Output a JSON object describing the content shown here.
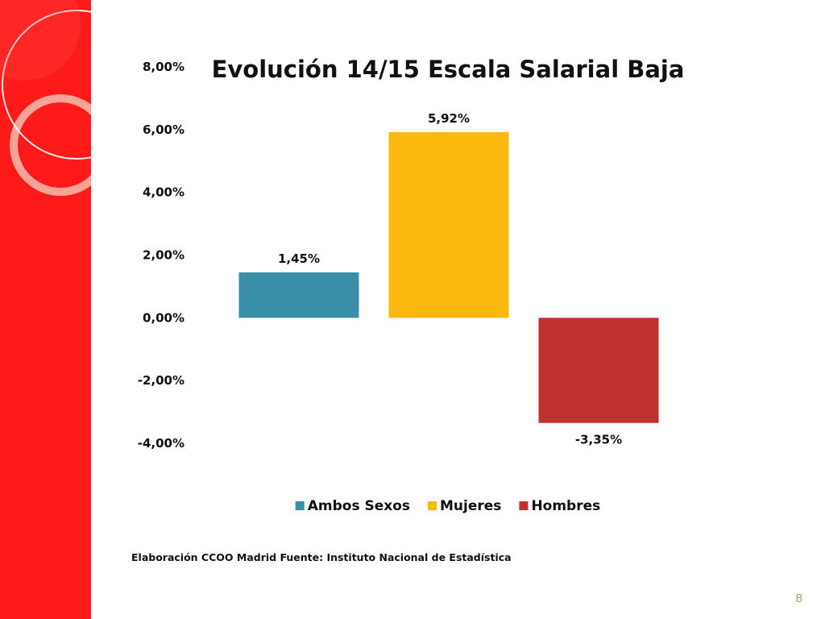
{
  "slide": {
    "source_note": "Elaboración CCOO Madrid Fuente: Instituto Nacional de Estadística",
    "page_number": "8",
    "band_color": "#ff1a1a"
  },
  "chart_data": {
    "type": "bar",
    "title": "Evolución 14/15 Escala Salarial Baja",
    "xlabel": "",
    "ylabel": "",
    "ylim": [
      -4,
      8
    ],
    "yticks": [
      8,
      6,
      4,
      2,
      0,
      -2,
      -4
    ],
    "ytick_labels": [
      "8,00%",
      "6,00%",
      "4,00%",
      "2,00%",
      "0,00%",
      "-2,00%",
      "-4,00%"
    ],
    "grid": false,
    "legend_position": "bottom",
    "series": [
      {
        "name": "Ambos Sexos",
        "value": 1.45,
        "label": "1,45%",
        "color": "#3a8fa8"
      },
      {
        "name": "Mujeres",
        "value": 5.92,
        "label": "5,92%",
        "color": "#fbb80e"
      },
      {
        "name": "Hombres",
        "value": -3.35,
        "label": "-3,35%",
        "color": "#c0302f"
      }
    ]
  }
}
